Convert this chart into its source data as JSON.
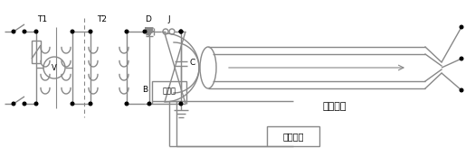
{
  "line_color": "#888888",
  "line_width": 1.0,
  "text_color": "#000000",
  "label_T1": "T1",
  "label_T2": "T2",
  "label_D": "D",
  "label_J": "J",
  "label_C": "C",
  "label_B": "B",
  "label_sampler": "采样盒",
  "label_cable": "被测电缆",
  "label_tester": "测试主机"
}
